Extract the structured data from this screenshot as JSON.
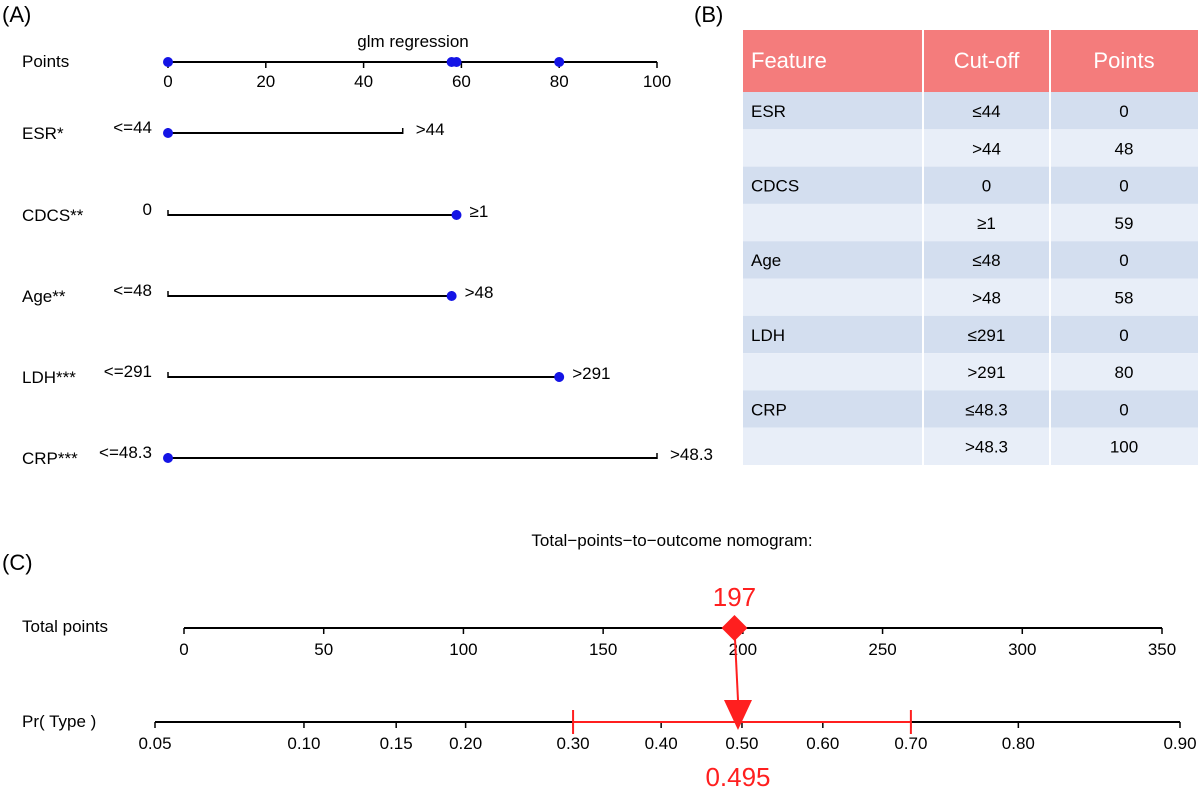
{
  "panels": {
    "a": "(A)",
    "b": "(B)",
    "c": "(C)"
  },
  "colors": {
    "dot": "#1414e6",
    "line": "#000000",
    "highlight": "#ff1f1f",
    "table_header": "#f47c7c",
    "row_a": "#d3deef",
    "row_b": "#e8eef8"
  },
  "chart_data": [
    {
      "type": "nomogram",
      "title": "glm regression",
      "points_axis": {
        "label": "Points",
        "min": 0,
        "max": 100,
        "ticks": [
          0,
          20,
          40,
          60,
          80,
          100
        ],
        "tick_labels": [
          "0",
          "20",
          "40",
          "60",
          "80",
          "100"
        ],
        "markers": [
          0,
          58,
          59,
          80
        ]
      },
      "variables": [
        {
          "label": "ESR*",
          "low_label": "<=44",
          "high_label": ">44",
          "low_points": 0,
          "high_points": 48,
          "dots": [
            0
          ]
        },
        {
          "label": "CDCS**",
          "low_label": "0",
          "high_label": "≥1",
          "low_points": 0,
          "high_points": 59,
          "dots": [
            59
          ]
        },
        {
          "label": "Age**",
          "low_label": "<=48",
          "high_label": ">48",
          "low_points": 0,
          "high_points": 58,
          "dots": [
            58
          ]
        },
        {
          "label": "LDH***",
          "low_label": "<=291",
          "high_label": ">291",
          "low_points": 0,
          "high_points": 80,
          "dots": [
            80
          ]
        },
        {
          "label": "CRP***",
          "low_label": "<=48.3",
          "high_label": ">48.3",
          "low_points": 0,
          "high_points": 100,
          "dots": [
            0
          ]
        }
      ]
    },
    {
      "type": "table",
      "columns": [
        "Feature",
        "Cut-off",
        "Points"
      ],
      "rows": [
        [
          "ESR",
          "≤44",
          "0"
        ],
        [
          "",
          ">44",
          "48"
        ],
        [
          "CDCS",
          "0",
          "0"
        ],
        [
          "",
          "≥1",
          "59"
        ],
        [
          "Age",
          "≤48",
          "0"
        ],
        [
          "",
          ">48",
          "58"
        ],
        [
          "LDH",
          "≤291",
          "0"
        ],
        [
          "",
          ">291",
          "80"
        ],
        [
          "CRP",
          "≤48.3",
          "0"
        ],
        [
          "",
          ">48.3",
          "100"
        ]
      ]
    },
    {
      "type": "nomogram",
      "title": "Total−points−to−outcome nomogram:",
      "total_axis": {
        "label": "Total points",
        "min": 0,
        "max": 350,
        "ticks": [
          0,
          50,
          100,
          150,
          200,
          250,
          300,
          350
        ],
        "tick_labels": [
          "0",
          "50",
          "100",
          "150",
          "200",
          "250",
          "300",
          "350"
        ]
      },
      "prob_axis": {
        "label": "Pr( Type )",
        "scale": "logit",
        "ticks": [
          0.05,
          0.1,
          0.15,
          0.2,
          0.3,
          0.4,
          0.5,
          0.6,
          0.7,
          0.8,
          0.9
        ],
        "tick_labels": [
          "0.05",
          "0.10",
          "0.15",
          "0.20",
          "0.30",
          "0.40",
          "0.50",
          "0.60",
          "0.70",
          "0.80",
          "0.90"
        ]
      },
      "total_value": 197,
      "total_value_label": "197",
      "probability": 0.495,
      "probability_label": "0.495",
      "ci": [
        0.3,
        0.7
      ]
    }
  ]
}
